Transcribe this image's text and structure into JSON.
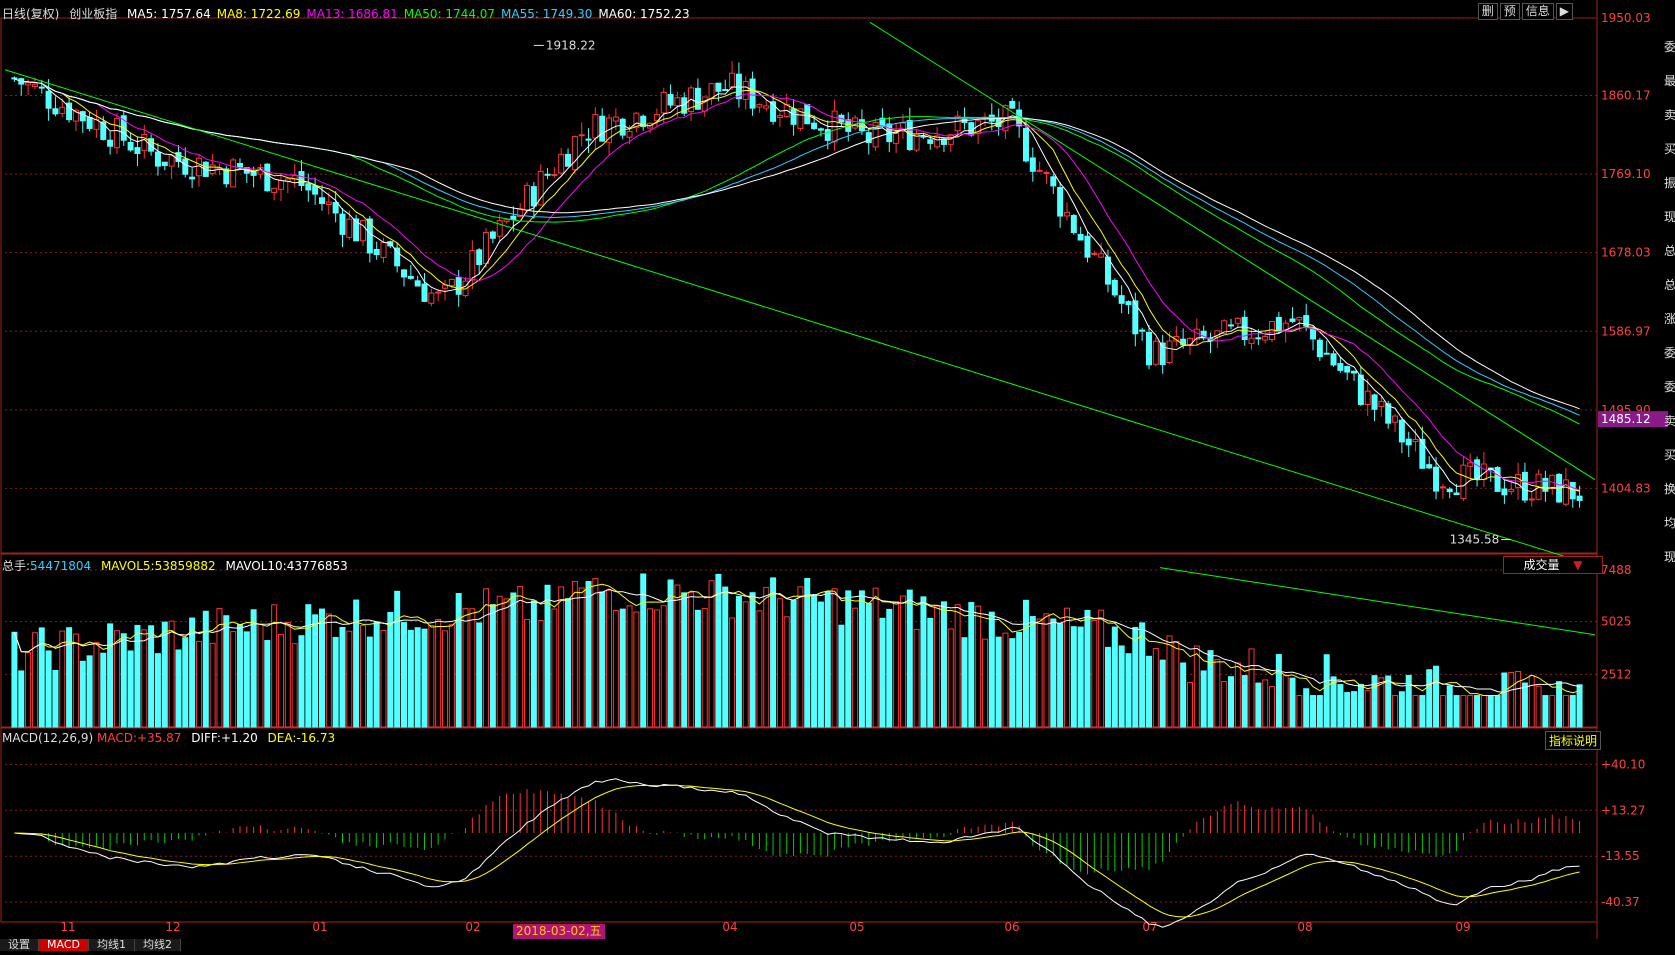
{
  "header": {
    "period": "日线(复权)",
    "index_name": "创业板指",
    "ma": [
      {
        "label": "MA5:",
        "value": "1757.64",
        "color": "#ffffff"
      },
      {
        "label": "MA8:",
        "value": "1722.69",
        "color": "#ffff00"
      },
      {
        "label": "MA13:",
        "value": "1686.81",
        "color": "#ff00ff"
      },
      {
        "label": "MA50:",
        "value": "1744.07",
        "color": "#00ff00"
      },
      {
        "label": "MA55:",
        "value": "1749.30",
        "color": "#33ccff"
      },
      {
        "label": "MA60:",
        "value": "1752.23",
        "color": "#ffffff"
      }
    ],
    "buttons": [
      "删",
      "预",
      "信息"
    ],
    "arrow_icon": "play-icon"
  },
  "volume_header": {
    "total_label": "总手:",
    "total_value": "54471804",
    "mavol5_label": "MAVOL5:",
    "mavol5_value": "53859882",
    "mavol10_label": "MAVOL10:",
    "mavol10_value": "43776853",
    "selector": "成交量",
    "selector_icon": "dropdown-triangle-icon"
  },
  "macd_header": {
    "params": "MACD(12,26,9)",
    "macd_label": "MACD:",
    "macd_value": "+35.87",
    "diff_label": "DIFF:",
    "diff_value": "+1.20",
    "dea_label": "DEA:",
    "dea_value": "-16.73",
    "help_button": "指标说明"
  },
  "bottom_tabs": [
    "设置",
    "MACD",
    "均线1",
    "均线2"
  ],
  "active_tab": "MACD",
  "right_edge_text": [
    "委",
    "最",
    "卖",
    "买",
    "振",
    "现",
    "总",
    "总",
    "涨",
    "委",
    "委",
    "卖",
    "买",
    "换",
    "均",
    "现"
  ],
  "chart_data": [
    {
      "type": "candlestick",
      "title": "创业板指 日线(复权)",
      "price_ticks": [
        "1950.03",
        "1860.17",
        "1769.10",
        "1678.03",
        "1586.97",
        "1495.90",
        "1404.83"
      ],
      "ylim": [
        1330,
        1950
      ],
      "current_price": "1485.12",
      "annotations": [
        {
          "text": "1918.22",
          "value": 1918.22
        },
        {
          "text": "1345.58",
          "value": 1345.58
        }
      ],
      "x_ticks": [
        "11",
        "12",
        "01",
        "02",
        "04",
        "05",
        "06",
        "07",
        "08",
        "09"
      ],
      "highlight_date": "2018-03-02,五",
      "approx_close_path": [
        {
          "month": "11",
          "close": 1880
        },
        {
          "month": "12",
          "close": 1790
        },
        {
          "month": "01",
          "close": 1760
        },
        {
          "month": "02",
          "close": 1620
        },
        {
          "month": "03",
          "close": 1820
        },
        {
          "month": "04",
          "close": 1870
        },
        {
          "month": "05",
          "close": 1810
        },
        {
          "month": "06",
          "close": 1830
        },
        {
          "month": "07",
          "close": 1560
        },
        {
          "month": "08",
          "close": 1600
        },
        {
          "month": "09",
          "close": 1420
        },
        {
          "month": "end",
          "close": 1400
        }
      ],
      "colors": {
        "up": "#ff3232",
        "down": "#54ffff",
        "ma5": "#ffffff",
        "ma8": "#ffff00",
        "ma13": "#ff00ff",
        "ma50": "#00ff00",
        "ma55": "#33ccff",
        "ma60": "#ffffff",
        "trend": "#00ff00"
      }
    },
    {
      "type": "bar",
      "title": "成交量",
      "y_ticks": [
        "7488",
        "5025",
        "2512"
      ],
      "ylim": [
        0,
        7488
      ]
    },
    {
      "type": "bar",
      "title": "MACD(12,26,9)",
      "y_ticks": [
        "+40.10",
        "+13.27",
        "-13.55",
        "-40.37"
      ],
      "ylim": [
        -52,
        52
      ]
    }
  ]
}
